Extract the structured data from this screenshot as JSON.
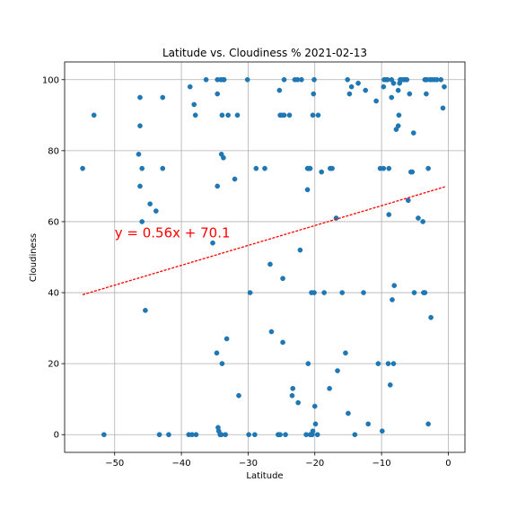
{
  "chart_data": {
    "type": "scatter",
    "title": "Latitude vs. Cloudiness % 2021-02-13",
    "xlabel": "Latitude",
    "ylabel": "Cloudiness",
    "xlim": [
      -57.5,
      2.5
    ],
    "ylim": [
      -5,
      105
    ],
    "xticks": [
      -50,
      -40,
      -30,
      -20,
      -10,
      0
    ],
    "yticks": [
      0,
      20,
      40,
      60,
      80,
      100
    ],
    "grid": true,
    "point_color": "#1f77b4",
    "regression": {
      "equation": "y = 0.56x + 70.1",
      "slope": 0.56,
      "intercept": 70.1,
      "x_start": -54.8,
      "x_end": -0.5,
      "color": "#ff0000",
      "label_x": -50,
      "label_y": 55
    },
    "points": [
      [
        -54.8,
        75
      ],
      [
        -53.1,
        90
      ],
      [
        -51.6,
        0
      ],
      [
        -46.4,
        79
      ],
      [
        -46.2,
        95
      ],
      [
        -46.2,
        87
      ],
      [
        -46.2,
        70
      ],
      [
        -45.9,
        75
      ],
      [
        -45.9,
        60
      ],
      [
        -45.4,
        35
      ],
      [
        -44.7,
        65
      ],
      [
        -43.8,
        63
      ],
      [
        -43.3,
        0
      ],
      [
        -42.8,
        95
      ],
      [
        -42.8,
        75
      ],
      [
        -41.9,
        0
      ],
      [
        -38.9,
        0
      ],
      [
        -38.7,
        98
      ],
      [
        -38.4,
        0
      ],
      [
        -38.1,
        93
      ],
      [
        -37.9,
        90
      ],
      [
        -37.8,
        0
      ],
      [
        -36.3,
        100
      ],
      [
        -35.3,
        54
      ],
      [
        -34.7,
        23
      ],
      [
        -34.6,
        70
      ],
      [
        -34.6,
        96
      ],
      [
        -34.6,
        100
      ],
      [
        -34.5,
        2
      ],
      [
        -34.4,
        1
      ],
      [
        -34.2,
        0
      ],
      [
        -34.1,
        100
      ],
      [
        -34.0,
        0
      ],
      [
        -34.0,
        79
      ],
      [
        -33.9,
        90
      ],
      [
        -33.9,
        20
      ],
      [
        -33.8,
        100
      ],
      [
        -33.7,
        78
      ],
      [
        -33.6,
        100
      ],
      [
        -33.4,
        0
      ],
      [
        -33.2,
        27
      ],
      [
        -33.0,
        90
      ],
      [
        -32.0,
        72
      ],
      [
        -31.6,
        90
      ],
      [
        -31.4,
        11
      ],
      [
        -30.1,
        100
      ],
      [
        -29.9,
        0
      ],
      [
        -29.7,
        40
      ],
      [
        -29.0,
        0
      ],
      [
        -28.8,
        75
      ],
      [
        -27.5,
        75
      ],
      [
        -26.7,
        48
      ],
      [
        -26.5,
        29
      ],
      [
        -25.5,
        0
      ],
      [
        -25.3,
        97
      ],
      [
        -25.2,
        0
      ],
      [
        -25.2,
        90
      ],
      [
        -24.9,
        90
      ],
      [
        -24.8,
        44
      ],
      [
        -24.8,
        26
      ],
      [
        -24.6,
        90
      ],
      [
        -24.6,
        100
      ],
      [
        -24.4,
        0
      ],
      [
        -23.8,
        90
      ],
      [
        -23.4,
        11
      ],
      [
        -23.3,
        13
      ],
      [
        -23.0,
        100
      ],
      [
        -22.6,
        100
      ],
      [
        -22.5,
        9
      ],
      [
        -22.2,
        52
      ],
      [
        -22.0,
        100
      ],
      [
        -21.3,
        0
      ],
      [
        -21.1,
        75
      ],
      [
        -21.1,
        69
      ],
      [
        -21.0,
        20
      ],
      [
        -20.9,
        75
      ],
      [
        -20.7,
        75
      ],
      [
        -20.7,
        0
      ],
      [
        -20.5,
        40
      ],
      [
        -20.4,
        0
      ],
      [
        -20.3,
        90
      ],
      [
        -20.3,
        1
      ],
      [
        -20.2,
        96
      ],
      [
        -20.1,
        40
      ],
      [
        -20.1,
        100
      ],
      [
        -20.0,
        8
      ],
      [
        -19.9,
        3
      ],
      [
        -19.6,
        0
      ],
      [
        -19.5,
        90
      ],
      [
        -19.0,
        74
      ],
      [
        -18.6,
        40
      ],
      [
        -17.8,
        13
      ],
      [
        -17.7,
        75
      ],
      [
        -17.4,
        75
      ],
      [
        -16.8,
        61
      ],
      [
        -16.6,
        18
      ],
      [
        -15.9,
        40
      ],
      [
        -15.4,
        23
      ],
      [
        -15.1,
        100
      ],
      [
        -15.0,
        6
      ],
      [
        -14.8,
        96
      ],
      [
        -14.5,
        98
      ],
      [
        -14.0,
        0
      ],
      [
        -13.5,
        99
      ],
      [
        -12.7,
        40
      ],
      [
        -12.4,
        97
      ],
      [
        -12.0,
        3
      ],
      [
        -10.8,
        94
      ],
      [
        -10.5,
        20
      ],
      [
        -10.2,
        75
      ],
      [
        -9.9,
        1
      ],
      [
        -9.7,
        75
      ],
      [
        -9.7,
        98
      ],
      [
        -9.6,
        100
      ],
      [
        -9.3,
        100
      ],
      [
        -9.1,
        100
      ],
      [
        -9.0,
        20
      ],
      [
        -8.9,
        62
      ],
      [
        -8.9,
        75
      ],
      [
        -8.7,
        14
      ],
      [
        -8.5,
        100
      ],
      [
        -8.5,
        95
      ],
      [
        -8.4,
        38
      ],
      [
        -8.2,
        99
      ],
      [
        -8.2,
        20
      ],
      [
        -8.1,
        42
      ],
      [
        -7.8,
        86
      ],
      [
        -7.5,
        97
      ],
      [
        -7.5,
        87
      ],
      [
        -7.4,
        90
      ],
      [
        -7.3,
        99
      ],
      [
        -7.2,
        100
      ],
      [
        -6.9,
        100
      ],
      [
        -6.6,
        100
      ],
      [
        -6.3,
        100
      ],
      [
        -6.2,
        100
      ],
      [
        -6.0,
        66
      ],
      [
        -5.8,
        96
      ],
      [
        -5.6,
        74
      ],
      [
        -5.4,
        74
      ],
      [
        -5.2,
        85
      ],
      [
        -5.1,
        40
      ],
      [
        -4.5,
        61
      ],
      [
        -3.8,
        60
      ],
      [
        -3.7,
        40
      ],
      [
        -3.5,
        40
      ],
      [
        -3.5,
        100
      ],
      [
        -3.4,
        100
      ],
      [
        -3.3,
        96
      ],
      [
        -3.2,
        100
      ],
      [
        -3.0,
        75
      ],
      [
        -3.0,
        3
      ],
      [
        -2.7,
        100
      ],
      [
        -2.6,
        33
      ],
      [
        -2.5,
        100
      ],
      [
        -2.1,
        100
      ],
      [
        -1.7,
        100
      ],
      [
        -1.1,
        100
      ],
      [
        -0.8,
        92
      ],
      [
        -0.6,
        98
      ]
    ]
  }
}
